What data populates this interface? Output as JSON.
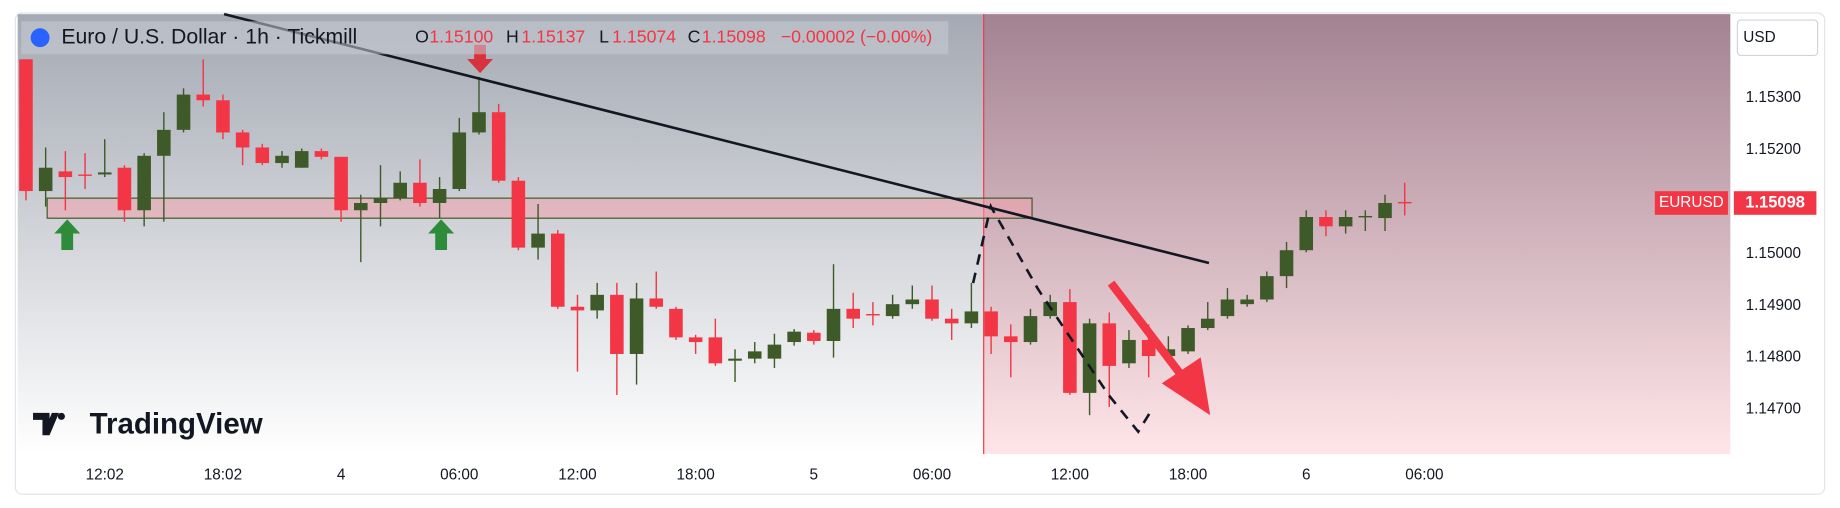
{
  "header": {
    "symbol": "Euro / U.S. Dollar · 1h · Tickmill",
    "o_label": "O",
    "o": "1.15100",
    "h_label": "H",
    "h": "1.15137",
    "l_label": "L",
    "l": "1.15074",
    "c_label": "C",
    "c": "1.15098",
    "change": "−0.00002 (−0.00%)",
    "currency": "USD",
    "ticker": "EURUSD",
    "brand": "TradingView"
  },
  "chart_data": {
    "type": "candlestick",
    "up_color": "#3d5a28",
    "down_color": "#f23645",
    "grid": false,
    "xlim": [
      -0.42,
      86.53
    ],
    "ylim": [
      1.14614,
      1.15462
    ],
    "xticks": [
      {
        "value": 4,
        "label": "12:02"
      },
      {
        "value": 10,
        "label": "18:02"
      },
      {
        "value": 16,
        "label": "4"
      },
      {
        "value": 22,
        "label": "06:00"
      },
      {
        "value": 28,
        "label": "12:00"
      },
      {
        "value": 34,
        "label": "18:00"
      },
      {
        "value": 40,
        "label": "5"
      },
      {
        "value": 46,
        "label": "06:00"
      },
      {
        "value": 53,
        "label": "12:00"
      },
      {
        "value": 59,
        "label": "18:00"
      },
      {
        "value": 65,
        "label": "6"
      },
      {
        "value": 71,
        "label": "06:00"
      }
    ],
    "yticks": [
      {
        "value": 1.153,
        "label": "1.15300"
      },
      {
        "value": 1.152,
        "label": "1.15200"
      },
      {
        "value": 1.15,
        "label": "1.15000"
      },
      {
        "value": 1.149,
        "label": "1.14900"
      },
      {
        "value": 1.148,
        "label": "1.14800"
      },
      {
        "value": 1.147,
        "label": "1.14700"
      }
    ],
    "open": [
      1.15375,
      1.15121,
      1.15159,
      1.15153,
      1.15153,
      1.15166,
      1.15084,
      1.15189,
      1.15239,
      1.15307,
      1.15296,
      1.15234,
      1.15205,
      1.15175,
      1.15166,
      1.15198,
      1.15187,
      1.15084,
      1.15098,
      1.15107,
      1.15137,
      1.15098,
      1.15125,
      1.15234,
      1.15273,
      1.15141,
      1.15012,
      1.15039,
      1.14898,
      1.14891,
      1.14921,
      1.14807,
      1.14914,
      1.14894,
      1.14839,
      1.14839,
      1.14794,
      1.14798,
      1.14798,
      1.1483,
      1.14848,
      1.14832,
      1.14894,
      1.14884,
      1.1488,
      1.14903,
      1.14912,
      1.14875,
      1.14866,
      1.14889,
      1.14841,
      1.1483,
      1.1488,
      1.14907,
      1.14732,
      1.14866,
      1.14789,
      1.14834,
      1.14803,
      1.14812,
      1.14857,
      1.1488,
      1.14903,
      1.14912,
      1.14957,
      1.15007,
      1.15071,
      1.15053,
      1.15073,
      1.15069,
      1.151
    ],
    "high": [
      1.15375,
      1.15205,
      1.15198,
      1.15194,
      1.15221,
      1.15171,
      1.15194,
      1.15273,
      1.15319,
      1.15375,
      1.15307,
      1.15239,
      1.15212,
      1.15198,
      1.15203,
      1.15203,
      1.15187,
      1.15114,
      1.15171,
      1.15159,
      1.15182,
      1.15148,
      1.15262,
      1.15341,
      1.15289,
      1.15148,
      1.15096,
      1.15046,
      1.14921,
      1.14944,
      1.14944,
      1.14944,
      1.14966,
      1.14898,
      1.14844,
      1.14875,
      1.14816,
      1.1483,
      1.14846,
      1.14855,
      1.14853,
      1.1498,
      1.14925,
      1.14907,
      1.14921,
      1.14939,
      1.14939,
      1.14894,
      1.14944,
      1.14898,
      1.14864,
      1.14894,
      1.14921,
      1.14932,
      1.14875,
      1.14887,
      1.14853,
      1.14864,
      1.14841,
      1.14862,
      1.14907,
      1.14934,
      1.14921,
      1.14966,
      1.15023,
      1.15084,
      1.15084,
      1.15084,
      1.15084,
      1.15114,
      1.15137
    ],
    "low": [
      1.15103,
      1.15091,
      1.15084,
      1.15125,
      1.15148,
      1.15062,
      1.15053,
      1.15062,
      1.15234,
      1.15284,
      1.15221,
      1.15171,
      1.15171,
      1.15166,
      1.15166,
      1.15182,
      1.15062,
      1.14984,
      1.15053,
      1.15103,
      1.15091,
      1.15069,
      1.15121,
      1.1523,
      1.15137,
      1.15007,
      1.14989,
      1.14894,
      1.14773,
      1.14875,
      1.14728,
      1.14748,
      1.14894,
      1.14834,
      1.14807,
      1.14784,
      1.14753,
      1.14789,
      1.1478,
      1.14823,
      1.14825,
      1.148,
      1.14857,
      1.14862,
      1.14875,
      1.14894,
      1.14871,
      1.14834,
      1.14857,
      1.14807,
      1.14762,
      1.14825,
      1.14875,
      1.14728,
      1.14689,
      1.14705,
      1.1478,
      1.14762,
      1.14798,
      1.14807,
      1.14853,
      1.14875,
      1.14898,
      1.14907,
      1.14934,
      1.15003,
      1.15034,
      1.15039,
      1.15044,
      1.15044,
      1.15074
    ],
    "close": [
      1.15121,
      1.15166,
      1.15148,
      1.15152,
      1.15157,
      1.15084,
      1.15189,
      1.15239,
      1.15307,
      1.15296,
      1.15234,
      1.15205,
      1.15175,
      1.15189,
      1.15198,
      1.15187,
      1.15084,
      1.15098,
      1.15107,
      1.15137,
      1.15098,
      1.15125,
      1.15234,
      1.15273,
      1.15141,
      1.15012,
      1.15039,
      1.14898,
      1.14891,
      1.14921,
      1.14807,
      1.14914,
      1.14898,
      1.14839,
      1.1483,
      1.14789,
      1.14798,
      1.14812,
      1.14825,
      1.1485,
      1.14832,
      1.14894,
      1.14875,
      1.14882,
      1.14903,
      1.14912,
      1.14875,
      1.14866,
      1.14889,
      1.14841,
      1.1483,
      1.1488,
      1.14907,
      1.14732,
      1.14866,
      1.14784,
      1.14834,
      1.14803,
      1.14816,
      1.14857,
      1.14875,
      1.14912,
      1.14912,
      1.14957,
      1.15007,
      1.15071,
      1.15053,
      1.15071,
      1.15073,
      1.15098,
      1.15098
    ]
  }
}
